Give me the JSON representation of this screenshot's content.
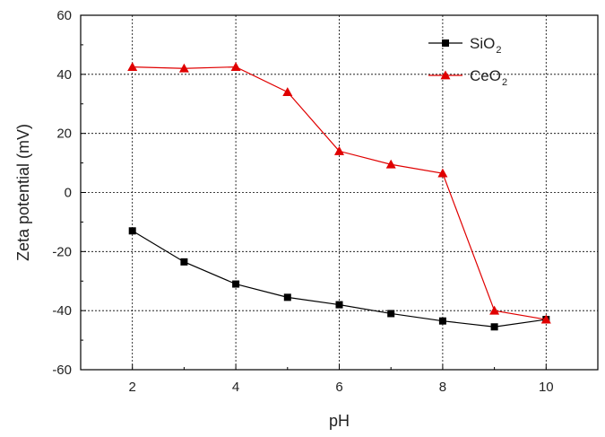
{
  "chart_data": {
    "type": "line",
    "xlabel": "pH",
    "ylabel": "Zeta potential (mV)",
    "xlim": [
      1,
      11
    ],
    "ylim": [
      -60,
      60
    ],
    "xticks": [
      2,
      4,
      6,
      8,
      10
    ],
    "yticks": [
      -60,
      -40,
      -20,
      0,
      20,
      40,
      60
    ],
    "grid": true,
    "legend_position": "top-right",
    "series": [
      {
        "name": "SiO2",
        "label_main": "SiO",
        "label_sub": "2",
        "color": "#000000",
        "marker": "square",
        "x": [
          2,
          3,
          4,
          5,
          6,
          7,
          8,
          9,
          10
        ],
        "y": [
          -13,
          -23.5,
          -31,
          -35.5,
          -38,
          -41,
          -43.5,
          -45.5,
          -43
        ]
      },
      {
        "name": "CeO2",
        "label_main": "CeO",
        "label_sub": "2",
        "color": "#e00000",
        "marker": "triangle",
        "x": [
          2,
          3,
          4,
          5,
          6,
          7,
          8,
          9,
          10
        ],
        "y": [
          42.5,
          42,
          42.5,
          34,
          14,
          9.5,
          6.5,
          -40,
          -43
        ]
      }
    ]
  }
}
